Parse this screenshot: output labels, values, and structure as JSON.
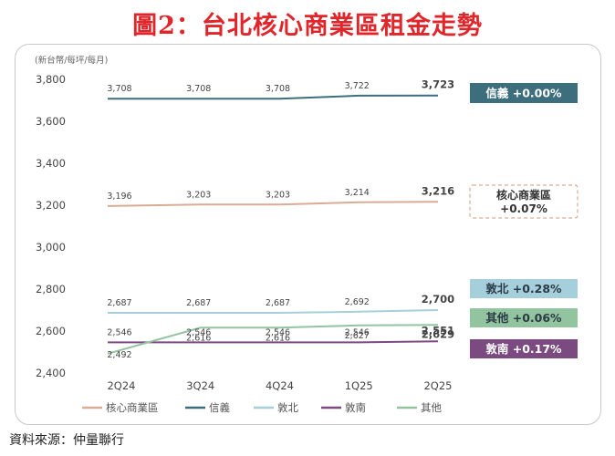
{
  "title": "圖2：台北核心商業區租金走勢",
  "source": "資料來源：仲量聯行",
  "chart_data": {
    "type": "line",
    "unit_label": "(新台幣/每坪/每月)",
    "categories": [
      "2Q24",
      "3Q24",
      "4Q24",
      "1Q25",
      "2Q25"
    ],
    "ylim": [
      2400,
      3800
    ],
    "yticks": [
      2400,
      2600,
      2800,
      3000,
      3200,
      3400,
      3600,
      3800
    ],
    "ytick_labels": [
      "2,400",
      "2,600",
      "2,800",
      "3,000",
      "3,200",
      "3,400",
      "3,600",
      "3,800"
    ],
    "grid": false,
    "legend_position": "bottom",
    "series": [
      {
        "name": "核心商業區",
        "color": "#d9ac95",
        "values": [
          3196,
          3203,
          3203,
          3214,
          3216
        ],
        "labels": [
          "3,196",
          "3,203",
          "3,203",
          "3,214",
          "3,216"
        ],
        "change_text": "核心商業區 +0.07%"
      },
      {
        "name": "信義",
        "color": "#3c6e7d",
        "values": [
          3708,
          3708,
          3708,
          3722,
          3723
        ],
        "labels": [
          "3,708",
          "3,708",
          "3,708",
          "3,722",
          "3,723"
        ],
        "change_text": "信義 +0.00%"
      },
      {
        "name": "敦北",
        "color": "#a6cfdc",
        "values": [
          2687,
          2687,
          2687,
          2692,
          2700
        ],
        "labels": [
          "2,687",
          "2,687",
          "2,687",
          "2,692",
          "2,700"
        ],
        "change_text": "敦北 +0.28%"
      },
      {
        "name": "敦南",
        "color": "#7b4a80",
        "values": [
          2546,
          2546,
          2546,
          2546,
          2551
        ],
        "labels": [
          "2,546",
          "2,546",
          "2,546",
          "2,546",
          "2,551"
        ],
        "change_text": "敦南 +0.17%"
      },
      {
        "name": "其他",
        "color": "#92c4a0",
        "values": [
          2492,
          2616,
          2616,
          2627,
          2629
        ],
        "labels": [
          "2,492",
          "2,616",
          "2,616",
          "2,627",
          "2,629"
        ],
        "change_text": "其他 +0.06%"
      }
    ]
  }
}
